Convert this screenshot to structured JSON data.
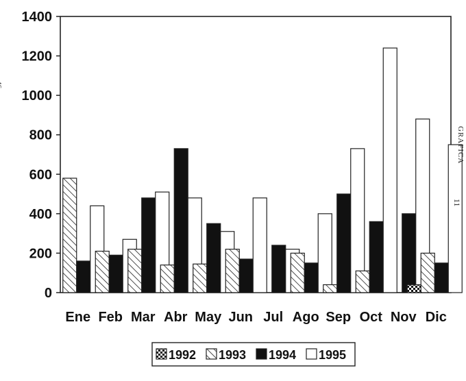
{
  "side_text": {
    "left": "46",
    "right_title": "GRAFICA",
    "right_number": "11"
  },
  "chart_data": {
    "type": "bar",
    "title": "",
    "xlabel": "",
    "ylabel": "",
    "ylim": [
      0,
      1400
    ],
    "yticks": [
      0,
      200,
      400,
      600,
      800,
      1000,
      1200,
      1400
    ],
    "grid": false,
    "legend_position": "bottom-center",
    "categories": [
      "Ene",
      "Feb",
      "Mar",
      "Abr",
      "May",
      "Jun",
      "Jul",
      "Ago",
      "Sep",
      "Oct",
      "Nov",
      "Dic"
    ],
    "series": [
      {
        "name": "1992",
        "pattern": "checker",
        "values": [
          0,
          0,
          0,
          0,
          0,
          0,
          0,
          0,
          0,
          0,
          0,
          40
        ]
      },
      {
        "name": "1993",
        "pattern": "hatch",
        "values": [
          580,
          210,
          220,
          140,
          145,
          220,
          0,
          200,
          40,
          110,
          0,
          200
        ]
      },
      {
        "name": "1994",
        "pattern": "solid",
        "color": "#111111",
        "values": [
          160,
          190,
          480,
          730,
          350,
          170,
          240,
          150,
          500,
          360,
          400,
          150
        ]
      },
      {
        "name": "1995",
        "pattern": "white",
        "values": [
          440,
          270,
          510,
          480,
          310,
          480,
          220,
          400,
          730,
          1240,
          880,
          750
        ]
      }
    ]
  }
}
